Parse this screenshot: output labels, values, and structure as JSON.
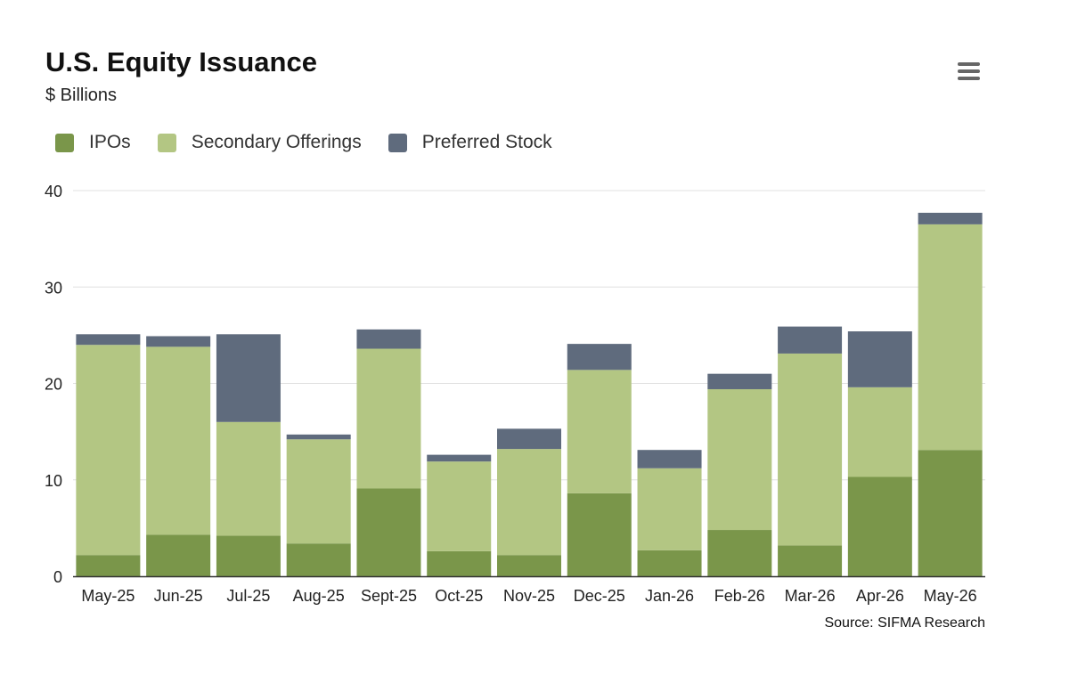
{
  "colors": {
    "IPOs": "#7a964a",
    "Secondary Offerings": "#b3c683",
    "Preferred Stock": "#5f6b7d",
    "grid": "#e0e0e0",
    "axis": "#333333"
  },
  "menu": {
    "icon": "hamburger-menu-icon"
  },
  "source": "Source: SIFMA Research",
  "chart_data": {
    "type": "bar",
    "stacked": true,
    "title": "U.S. Equity Issuance",
    "subtitle": "$ Billions",
    "xlabel": "",
    "ylabel": "",
    "ylim": [
      0,
      40
    ],
    "yticks": [
      0,
      10,
      20,
      30,
      40
    ],
    "grid": true,
    "legend_position": "top-left",
    "categories": [
      "May-25",
      "Jun-25",
      "Jul-25",
      "Aug-25",
      "Sept-25",
      "Oct-25",
      "Nov-25",
      "Dec-25",
      "Jan-26",
      "Feb-26",
      "Mar-26",
      "Apr-26",
      "May-26"
    ],
    "series": [
      {
        "name": "IPOs",
        "values": [
          2.2,
          4.3,
          4.2,
          3.4,
          9.1,
          2.6,
          2.2,
          8.6,
          2.7,
          4.8,
          3.2,
          10.3,
          13.1
        ]
      },
      {
        "name": "Secondary Offerings",
        "values": [
          21.8,
          19.5,
          11.8,
          10.8,
          14.5,
          9.3,
          11.0,
          12.8,
          8.5,
          14.6,
          19.9,
          9.3,
          23.4
        ]
      },
      {
        "name": "Preferred Stock",
        "values": [
          1.1,
          1.1,
          9.1,
          0.5,
          2.0,
          0.7,
          2.1,
          2.7,
          1.9,
          1.6,
          2.8,
          5.8,
          1.2
        ]
      }
    ]
  }
}
